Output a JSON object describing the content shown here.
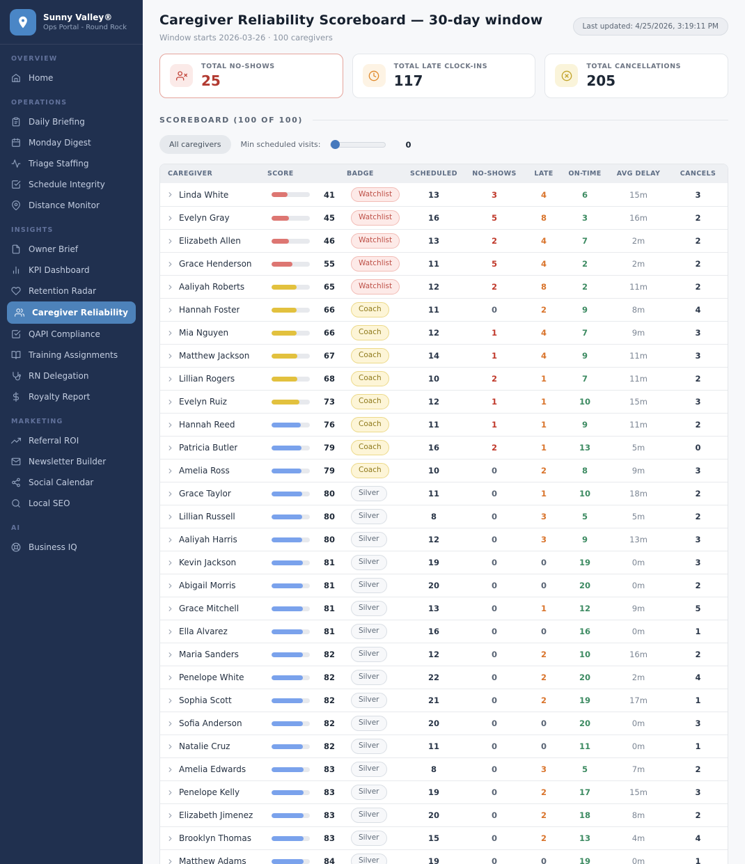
{
  "brand": {
    "name": "Sunny Valley®",
    "subtitle": "Ops Portal - Round Rock"
  },
  "sidebar": {
    "sections": [
      {
        "label": "OVERVIEW",
        "items": [
          {
            "label": "Home",
            "icon": "home-icon"
          }
        ]
      },
      {
        "label": "OPERATIONS",
        "items": [
          {
            "label": "Daily Briefing",
            "icon": "clipboard-icon"
          },
          {
            "label": "Monday Digest",
            "icon": "calendar-icon"
          },
          {
            "label": "Triage Staffing",
            "icon": "activity-icon"
          },
          {
            "label": "Schedule Integrity",
            "icon": "check-square-icon"
          },
          {
            "label": "Distance Monitor",
            "icon": "map-pin-icon"
          }
        ]
      },
      {
        "label": "INSIGHTS",
        "items": [
          {
            "label": "Owner Brief",
            "icon": "file-icon"
          },
          {
            "label": "KPI Dashboard",
            "icon": "bar-chart-icon"
          },
          {
            "label": "Retention Radar",
            "icon": "heart-icon"
          },
          {
            "label": "Caregiver Reliability",
            "icon": "users-icon",
            "active": true
          },
          {
            "label": "QAPI Compliance",
            "icon": "check-square-icon"
          },
          {
            "label": "Training Assignments",
            "icon": "book-open-icon"
          },
          {
            "label": "RN Delegation",
            "icon": "stethoscope-icon"
          },
          {
            "label": "Royalty Report",
            "icon": "dollar-icon"
          }
        ]
      },
      {
        "label": "MARKETING",
        "items": [
          {
            "label": "Referral ROI",
            "icon": "trending-up-icon"
          },
          {
            "label": "Newsletter Builder",
            "icon": "mail-icon"
          },
          {
            "label": "Social Calendar",
            "icon": "share-icon"
          },
          {
            "label": "Local SEO",
            "icon": "search-icon"
          }
        ]
      },
      {
        "label": "AI",
        "items": [
          {
            "label": "Business IQ",
            "icon": "life-buoy-icon"
          }
        ]
      }
    ]
  },
  "header": {
    "title": "Caregiver Reliability Scoreboard — 30-day window",
    "subtitle": "Window starts 2026-03-26 · 100 caregivers",
    "last_updated": "Last updated: 4/25/2026, 3:19:11 PM"
  },
  "stats": [
    {
      "label": "TOTAL NO-SHOWS",
      "value": "25",
      "icon": "user-x-icon",
      "chip": "chip-red",
      "alert": true
    },
    {
      "label": "TOTAL LATE CLOCK-INS",
      "value": "117",
      "icon": "clock-icon",
      "chip": "chip-orange",
      "alert": false
    },
    {
      "label": "TOTAL CANCELLATIONS",
      "value": "205",
      "icon": "x-circle-icon",
      "chip": "chip-yellow",
      "alert": false
    }
  ],
  "scoreboard": {
    "section_title": "SCOREBOARD (100 OF 100)",
    "filter_pill": "All caregivers",
    "slider_label": "Min scheduled visits:",
    "slider_value": "0",
    "columns": [
      "CAREGIVER",
      "SCORE",
      "BADGE",
      "SCHEDULED",
      "NO-SHOWS",
      "LATE",
      "ON-TIME",
      "AVG DELAY",
      "CANCELS"
    ],
    "rows": [
      {
        "name": "Linda White",
        "score": 41,
        "badge": "Watchlist",
        "scheduled": 13,
        "no_shows": 3,
        "late": 4,
        "on_time": 6,
        "avg_delay": "15m",
        "cancels": 3
      },
      {
        "name": "Evelyn Gray",
        "score": 45,
        "badge": "Watchlist",
        "scheduled": 16,
        "no_shows": 5,
        "late": 8,
        "on_time": 3,
        "avg_delay": "16m",
        "cancels": 2
      },
      {
        "name": "Elizabeth Allen",
        "score": 46,
        "badge": "Watchlist",
        "scheduled": 13,
        "no_shows": 2,
        "late": 4,
        "on_time": 7,
        "avg_delay": "2m",
        "cancels": 2
      },
      {
        "name": "Grace Henderson",
        "score": 55,
        "badge": "Watchlist",
        "scheduled": 11,
        "no_shows": 5,
        "late": 4,
        "on_time": 2,
        "avg_delay": "2m",
        "cancels": 2
      },
      {
        "name": "Aaliyah Roberts",
        "score": 65,
        "badge": "Watchlist",
        "scheduled": 12,
        "no_shows": 2,
        "late": 8,
        "on_time": 2,
        "avg_delay": "11m",
        "cancels": 2
      },
      {
        "name": "Hannah Foster",
        "score": 66,
        "badge": "Coach",
        "scheduled": 11,
        "no_shows": 0,
        "late": 2,
        "on_time": 9,
        "avg_delay": "8m",
        "cancels": 4
      },
      {
        "name": "Mia Nguyen",
        "score": 66,
        "badge": "Coach",
        "scheduled": 12,
        "no_shows": 1,
        "late": 4,
        "on_time": 7,
        "avg_delay": "9m",
        "cancels": 3
      },
      {
        "name": "Matthew Jackson",
        "score": 67,
        "badge": "Coach",
        "scheduled": 14,
        "no_shows": 1,
        "late": 4,
        "on_time": 9,
        "avg_delay": "11m",
        "cancels": 3
      },
      {
        "name": "Lillian Rogers",
        "score": 68,
        "badge": "Coach",
        "scheduled": 10,
        "no_shows": 2,
        "late": 1,
        "on_time": 7,
        "avg_delay": "11m",
        "cancels": 2
      },
      {
        "name": "Evelyn Ruiz",
        "score": 73,
        "badge": "Coach",
        "scheduled": 12,
        "no_shows": 1,
        "late": 1,
        "on_time": 10,
        "avg_delay": "15m",
        "cancels": 3
      },
      {
        "name": "Hannah Reed",
        "score": 76,
        "badge": "Coach",
        "scheduled": 11,
        "no_shows": 1,
        "late": 1,
        "on_time": 9,
        "avg_delay": "11m",
        "cancels": 2
      },
      {
        "name": "Patricia Butler",
        "score": 79,
        "badge": "Coach",
        "scheduled": 16,
        "no_shows": 2,
        "late": 1,
        "on_time": 13,
        "avg_delay": "5m",
        "cancels": 0
      },
      {
        "name": "Amelia Ross",
        "score": 79,
        "badge": "Coach",
        "scheduled": 10,
        "no_shows": 0,
        "late": 2,
        "on_time": 8,
        "avg_delay": "9m",
        "cancels": 3
      },
      {
        "name": "Grace Taylor",
        "score": 80,
        "badge": "Silver",
        "scheduled": 11,
        "no_shows": 0,
        "late": 1,
        "on_time": 10,
        "avg_delay": "18m",
        "cancels": 2
      },
      {
        "name": "Lillian Russell",
        "score": 80,
        "badge": "Silver",
        "scheduled": 8,
        "no_shows": 0,
        "late": 3,
        "on_time": 5,
        "avg_delay": "5m",
        "cancels": 2
      },
      {
        "name": "Aaliyah Harris",
        "score": 80,
        "badge": "Silver",
        "scheduled": 12,
        "no_shows": 0,
        "late": 3,
        "on_time": 9,
        "avg_delay": "13m",
        "cancels": 3
      },
      {
        "name": "Kevin Jackson",
        "score": 81,
        "badge": "Silver",
        "scheduled": 19,
        "no_shows": 0,
        "late": 0,
        "on_time": 19,
        "avg_delay": "0m",
        "cancels": 3
      },
      {
        "name": "Abigail Morris",
        "score": 81,
        "badge": "Silver",
        "scheduled": 20,
        "no_shows": 0,
        "late": 0,
        "on_time": 20,
        "avg_delay": "0m",
        "cancels": 2
      },
      {
        "name": "Grace Mitchell",
        "score": 81,
        "badge": "Silver",
        "scheduled": 13,
        "no_shows": 0,
        "late": 1,
        "on_time": 12,
        "avg_delay": "9m",
        "cancels": 5
      },
      {
        "name": "Ella Alvarez",
        "score": 81,
        "badge": "Silver",
        "scheduled": 16,
        "no_shows": 0,
        "late": 0,
        "on_time": 16,
        "avg_delay": "0m",
        "cancels": 1
      },
      {
        "name": "Maria Sanders",
        "score": 82,
        "badge": "Silver",
        "scheduled": 12,
        "no_shows": 0,
        "late": 2,
        "on_time": 10,
        "avg_delay": "16m",
        "cancels": 2
      },
      {
        "name": "Penelope White",
        "score": 82,
        "badge": "Silver",
        "scheduled": 22,
        "no_shows": 0,
        "late": 2,
        "on_time": 20,
        "avg_delay": "2m",
        "cancels": 4
      },
      {
        "name": "Sophia Scott",
        "score": 82,
        "badge": "Silver",
        "scheduled": 21,
        "no_shows": 0,
        "late": 2,
        "on_time": 19,
        "avg_delay": "17m",
        "cancels": 1
      },
      {
        "name": "Sofia Anderson",
        "score": 82,
        "badge": "Silver",
        "scheduled": 20,
        "no_shows": 0,
        "late": 0,
        "on_time": 20,
        "avg_delay": "0m",
        "cancels": 3
      },
      {
        "name": "Natalie Cruz",
        "score": 82,
        "badge": "Silver",
        "scheduled": 11,
        "no_shows": 0,
        "late": 0,
        "on_time": 11,
        "avg_delay": "0m",
        "cancels": 1
      },
      {
        "name": "Amelia Edwards",
        "score": 83,
        "badge": "Silver",
        "scheduled": 8,
        "no_shows": 0,
        "late": 3,
        "on_time": 5,
        "avg_delay": "7m",
        "cancels": 2
      },
      {
        "name": "Penelope Kelly",
        "score": 83,
        "badge": "Silver",
        "scheduled": 19,
        "no_shows": 0,
        "late": 2,
        "on_time": 17,
        "avg_delay": "15m",
        "cancels": 3
      },
      {
        "name": "Elizabeth Jimenez",
        "score": 83,
        "badge": "Silver",
        "scheduled": 20,
        "no_shows": 0,
        "late": 2,
        "on_time": 18,
        "avg_delay": "8m",
        "cancels": 2
      },
      {
        "name": "Brooklyn Thomas",
        "score": 83,
        "badge": "Silver",
        "scheduled": 15,
        "no_shows": 0,
        "late": 2,
        "on_time": 13,
        "avg_delay": "4m",
        "cancels": 4
      },
      {
        "name": "Matthew Adams",
        "score": 84,
        "badge": "Silver",
        "scheduled": 19,
        "no_shows": 0,
        "late": 0,
        "on_time": 19,
        "avg_delay": "0m",
        "cancels": 1
      }
    ]
  },
  "colors": {
    "sidebar_bg": "#20304f",
    "active_item_bg": "#4d82ba",
    "brand_tile": "#4a86c6",
    "alert_red": "#b23a31",
    "no_show_red": "#c0392b",
    "late_orange": "#d9742c",
    "on_time_green": "#3d8b62",
    "bar_low": "#dd7672",
    "bar_mid": "#e2c13e",
    "bar_high": "#7aa2ec"
  }
}
